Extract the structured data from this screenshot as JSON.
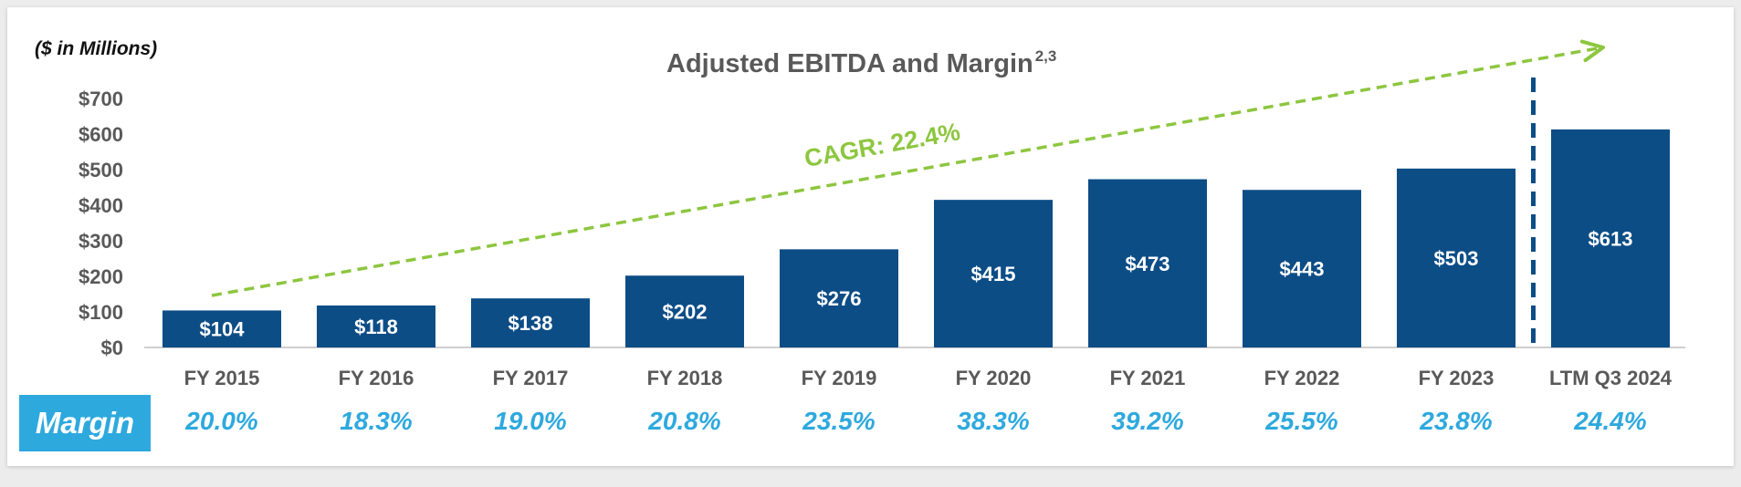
{
  "units_label": "($ in Millions)",
  "title": "Adjusted EBITDA and Margin",
  "title_superscript": "2,3",
  "cagr_label": "CAGR: 22.4%",
  "margin_label": "Margin",
  "colors": {
    "bar": "#0c4d86",
    "margin_text": "#2ea9de",
    "margin_badge": "#2ea9de",
    "cagr_arrow": "#8dc63f",
    "divider": "#0c4d86",
    "axis_text": "#595959"
  },
  "chart_data": {
    "type": "bar",
    "title": "Adjusted EBITDA and Margin",
    "categories": [
      "FY 2015",
      "FY 2016",
      "FY 2017",
      "FY 2018",
      "FY 2019",
      "FY 2020",
      "FY 2021",
      "FY 2022",
      "FY 2023",
      "LTM Q3 2024"
    ],
    "values": [
      104,
      118,
      138,
      202,
      276,
      415,
      473,
      443,
      503,
      613
    ],
    "value_labels": [
      "$104",
      "$118",
      "$138",
      "$202",
      "$276",
      "$415",
      "$473",
      "$443",
      "$503",
      "$613"
    ],
    "margins": [
      "20.0%",
      "18.3%",
      "19.0%",
      "20.8%",
      "23.5%",
      "38.3%",
      "39.2%",
      "25.5%",
      "23.8%",
      "24.4%"
    ],
    "yticks": [
      "$0",
      "$100",
      "$200",
      "$300",
      "$400",
      "$500",
      "$600",
      "$700"
    ],
    "ylim": [
      0,
      700
    ],
    "ylabel": "",
    "xlabel": "",
    "grid": false,
    "annotation": "CAGR: 22.4%",
    "divider_after": "FY 2023"
  }
}
